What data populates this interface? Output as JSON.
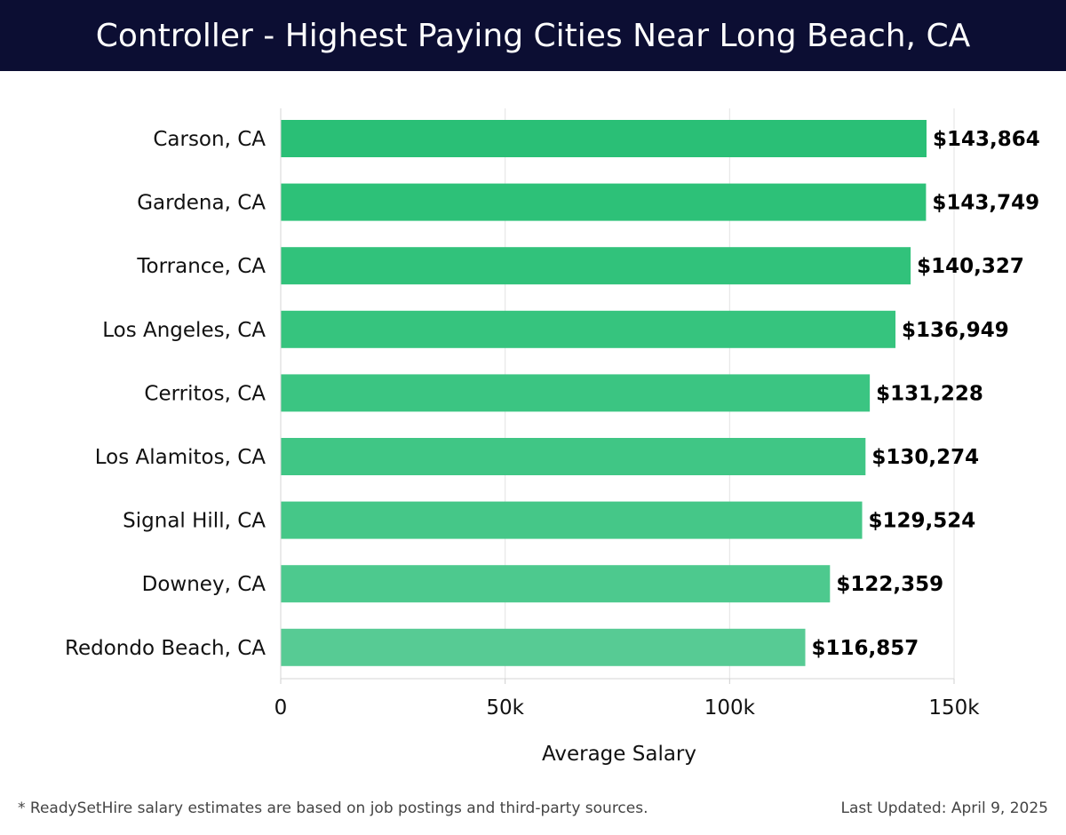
{
  "header": {
    "title": "Controller - Highest Paying Cities Near Long Beach, CA"
  },
  "chart_data": {
    "type": "bar",
    "orientation": "horizontal",
    "title": "Controller - Highest Paying Cities Near Long Beach, CA",
    "xlabel": "Average Salary",
    "ylabel": "",
    "xlim": [
      0,
      150000
    ],
    "xticks": [
      0,
      50000,
      100000,
      150000
    ],
    "xtick_labels": [
      "0",
      "50k",
      "100k",
      "150k"
    ],
    "grid": true,
    "categories": [
      "Carson, CA",
      "Gardena, CA",
      "Torrance, CA",
      "Los Angeles, CA",
      "Cerritos, CA",
      "Los Alamitos, CA",
      "Signal Hill, CA",
      "Downey, CA",
      "Redondo Beach, CA"
    ],
    "values": [
      143864,
      143749,
      140327,
      136949,
      131228,
      130274,
      129524,
      122359,
      116857
    ],
    "value_labels": [
      "$143,864",
      "$143,749",
      "$140,327",
      "$136,949",
      "$131,228",
      "$130,274",
      "$129,524",
      "$122,359",
      "$116,857"
    ],
    "bar_colors": [
      "#2abf76",
      "#2dc178",
      "#31c27b",
      "#36c47e",
      "#3bc582",
      "#40c685",
      "#45c788",
      "#4dc98e",
      "#57cb94"
    ]
  },
  "footer": {
    "note": "* ReadySetHire salary estimates are based on job postings and third-party sources.",
    "updated": "Last Updated: April 9, 2025"
  }
}
